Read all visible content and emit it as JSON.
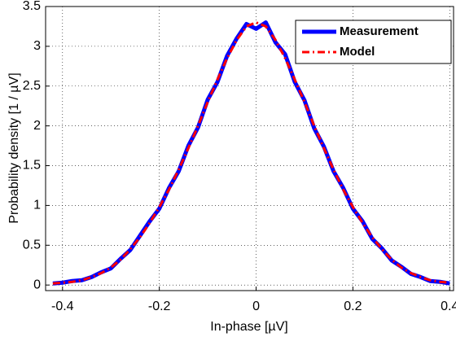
{
  "chart_data": {
    "type": "line",
    "x_label": "In-phase  [µV]",
    "y_label": "Probability density  [1 / µV]",
    "x": [
      -0.42,
      -0.4,
      -0.38,
      -0.36,
      -0.34,
      -0.32,
      -0.3,
      -0.28,
      -0.26,
      -0.24,
      -0.22,
      -0.2,
      -0.18,
      -0.16,
      -0.14,
      -0.12,
      -0.1,
      -0.08,
      -0.06,
      -0.04,
      -0.02,
      0,
      0.02,
      0.04,
      0.06,
      0.08,
      0.1,
      0.12,
      0.14,
      0.16,
      0.18,
      0.2,
      0.22,
      0.24,
      0.26,
      0.28,
      0.3,
      0.32,
      0.34,
      0.36,
      0.38,
      0.4
    ],
    "series": [
      {
        "name": "Measurement",
        "color": "#0000ff",
        "style": "solid",
        "values": [
          0.02,
          0.03,
          0.05,
          0.06,
          0.1,
          0.16,
          0.21,
          0.33,
          0.44,
          0.62,
          0.8,
          0.96,
          1.22,
          1.43,
          1.75,
          1.98,
          2.33,
          2.55,
          2.88,
          3.1,
          3.28,
          3.22,
          3.3,
          3.05,
          2.9,
          2.55,
          2.32,
          1.97,
          1.74,
          1.43,
          1.22,
          0.96,
          0.8,
          0.58,
          0.46,
          0.31,
          0.23,
          0.14,
          0.1,
          0.05,
          0.04,
          0.02
        ]
      },
      {
        "name": "Model",
        "color": "#ff0000",
        "style": "dashdot",
        "values": [
          0.02,
          0.03,
          0.04,
          0.06,
          0.1,
          0.15,
          0.22,
          0.32,
          0.45,
          0.6,
          0.78,
          0.98,
          1.2,
          1.45,
          1.72,
          2.0,
          2.3,
          2.58,
          2.85,
          3.08,
          3.25,
          3.3,
          3.25,
          3.08,
          2.85,
          2.58,
          2.3,
          2.0,
          1.72,
          1.45,
          1.2,
          0.98,
          0.78,
          0.6,
          0.45,
          0.32,
          0.22,
          0.15,
          0.1,
          0.06,
          0.04,
          0.03
        ]
      }
    ],
    "xlim": [
      -0.435,
      0.408
    ],
    "ylim": [
      -0.07,
      3.5
    ],
    "xticks": [
      -0.4,
      -0.2,
      0,
      0.2,
      0.4
    ],
    "yticks": [
      0,
      0.5,
      1,
      1.5,
      2,
      2.5,
      3,
      3.5
    ],
    "grid": true,
    "legend": "upper right"
  }
}
